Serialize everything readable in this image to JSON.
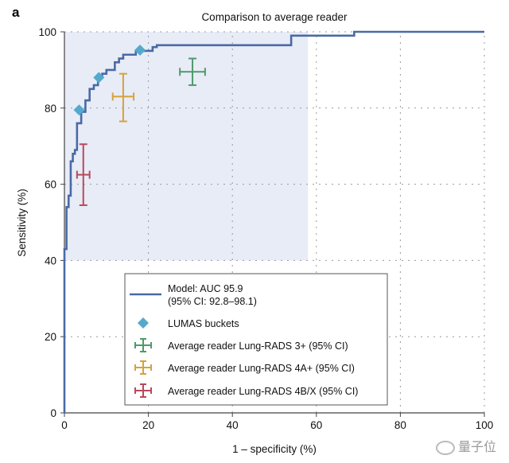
{
  "panel_label": "a",
  "watermark": "量子位",
  "chart_data": {
    "type": "line",
    "title": "Comparison to average reader",
    "xlabel": "1 – specificity (%)",
    "ylabel": "Sensitivity (%)",
    "xlim": [
      0,
      100
    ],
    "ylim": [
      0,
      100
    ],
    "xticks": [
      0,
      20,
      40,
      60,
      80,
      100
    ],
    "yticks": [
      0,
      20,
      40,
      60,
      80,
      100
    ],
    "grid": true,
    "legend_position": "bottom-center",
    "shaded_region": {
      "x": [
        0,
        58
      ],
      "y": [
        40,
        100
      ],
      "color": "#e8ecf7"
    },
    "series": [
      {
        "name": "Model: AUC 95.9 (95% CI: 92.8–98.1)",
        "kind": "roc-step",
        "color": "#4a6aa5",
        "x": [
          0,
          0,
          0.5,
          0.5,
          1,
          1,
          1.5,
          1.5,
          2,
          2,
          2.5,
          2.5,
          3,
          3,
          4,
          4,
          5,
          5,
          6,
          6,
          7,
          7,
          8,
          8,
          9,
          9,
          10,
          10,
          12,
          12,
          13,
          13,
          14,
          14,
          17,
          17,
          21,
          21,
          22,
          22,
          54,
          54,
          69,
          69,
          100
        ],
        "y": [
          0,
          43,
          43,
          54,
          54,
          57,
          57,
          66,
          66,
          68,
          68,
          69,
          69,
          76,
          76,
          79,
          79,
          82,
          82,
          85,
          85,
          86,
          86,
          88,
          88,
          89,
          89,
          90,
          90,
          92,
          92,
          93,
          93,
          94,
          94,
          95,
          95,
          96,
          96,
          96.5,
          96.5,
          99,
          99,
          100,
          100
        ]
      },
      {
        "name": "LUMAS buckets",
        "kind": "scatter",
        "marker": "diamond",
        "color": "#55aacc",
        "x": [
          3.5,
          8.2,
          18
        ],
        "y": [
          79.5,
          88,
          95.2
        ]
      },
      {
        "name": "Average reader Lung-RADS 3+ (95% CI)",
        "kind": "errorbar",
        "color": "#4e9a6a",
        "x": 30.5,
        "y": 89.5,
        "x_ci": [
          27.5,
          33.5
        ],
        "y_ci": [
          86,
          93
        ]
      },
      {
        "name": "Average reader Lung-RADS 4A+ (95% CI)",
        "kind": "errorbar",
        "color": "#d6a23a",
        "x": 14,
        "y": 83,
        "x_ci": [
          11.5,
          16.5
        ],
        "y_ci": [
          76.5,
          89
        ]
      },
      {
        "name": "Average reader Lung-RADS 4B/X (95% CI)",
        "kind": "errorbar",
        "color": "#b54a5d",
        "x": 4.5,
        "y": 62.5,
        "x_ci": [
          3,
          6
        ],
        "y_ci": [
          54.5,
          70.5
        ]
      }
    ],
    "legend": [
      {
        "label_line1": "Model: AUC 95.9",
        "label_line2": "(95% CI: 92.8–98.1)",
        "symbol": "line",
        "color": "#4a6aa5"
      },
      {
        "label_line1": "LUMAS buckets",
        "symbol": "diamond",
        "color": "#55aacc"
      },
      {
        "label_line1": "Average reader Lung-RADS 3+ (95% CI)",
        "symbol": "cross",
        "color": "#4e9a6a"
      },
      {
        "label_line1": "Average reader Lung-RADS 4A+ (95% CI)",
        "symbol": "cross",
        "color": "#d6a23a"
      },
      {
        "label_line1": "Average reader Lung-RADS 4B/X (95% CI)",
        "symbol": "cross",
        "color": "#b54a5d"
      }
    ]
  }
}
